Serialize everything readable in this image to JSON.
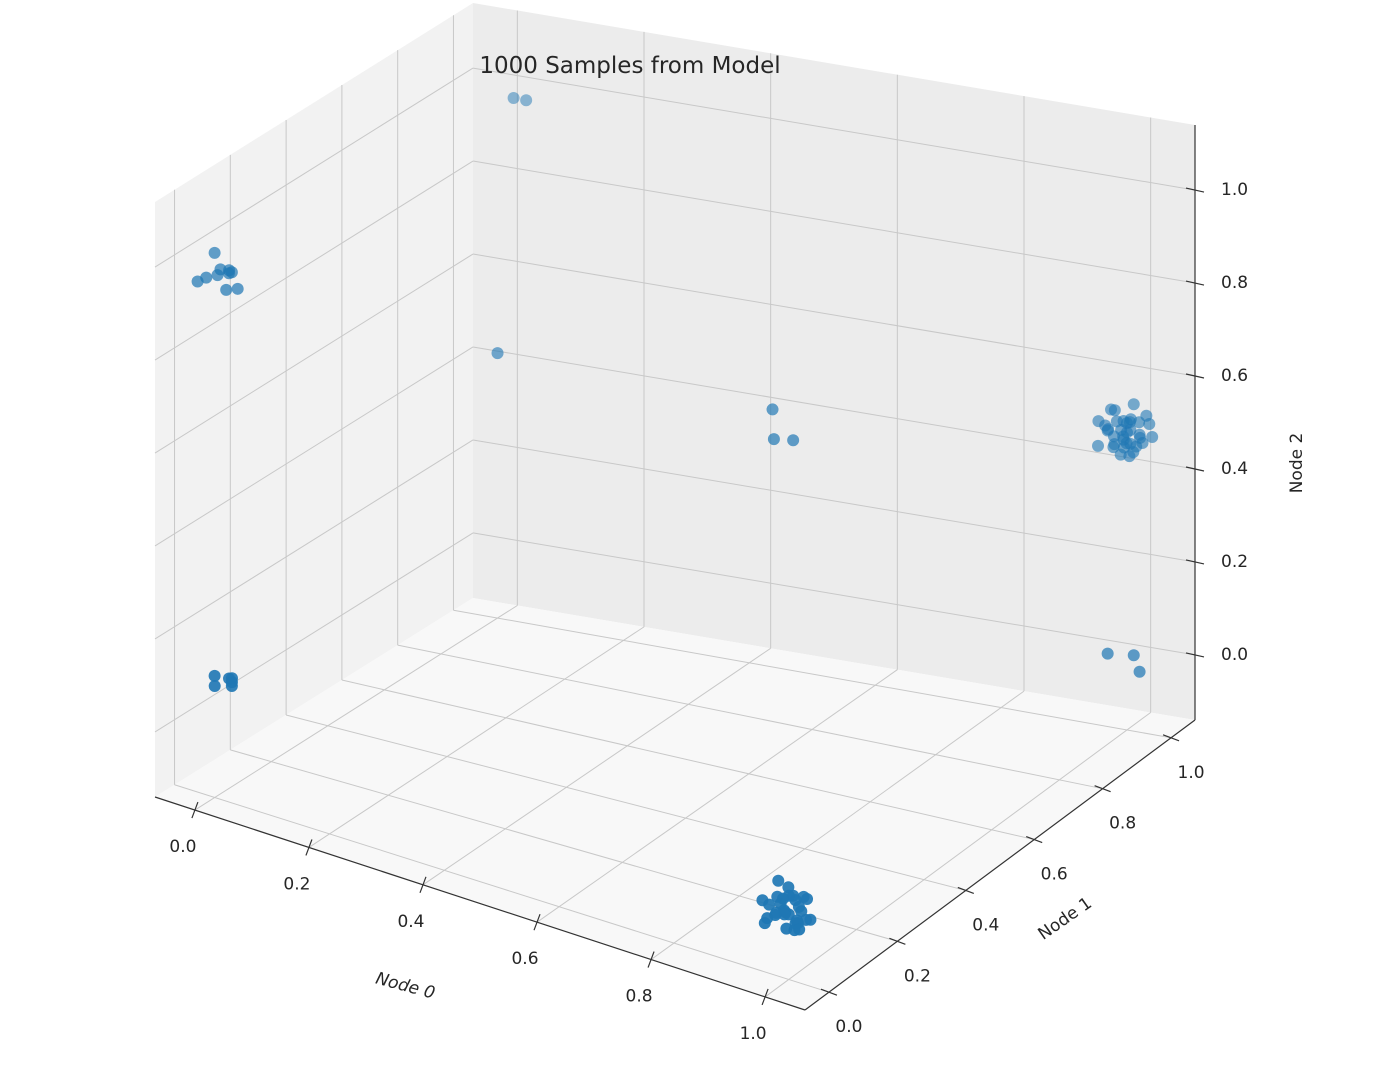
{
  "chart_data": {
    "type": "scatter",
    "title": "1000 Samples from Model",
    "xlabel": "Node 0",
    "ylabel": "Node 1",
    "zlabel": "Node 2",
    "xlim": [
      -0.07,
      1.07
    ],
    "ylim": [
      -0.07,
      1.07
    ],
    "zlim": [
      -0.14,
      1.14
    ],
    "xticks": [
      "0.0",
      "0.2",
      "0.4",
      "0.6",
      "0.8",
      "1.0"
    ],
    "yticks": [
      "0.0",
      "0.2",
      "0.4",
      "0.6",
      "0.8",
      "1.0"
    ],
    "zticks": [
      "0.0",
      "0.2",
      "0.4",
      "0.6",
      "0.8",
      "1.0"
    ],
    "grid": true,
    "color": "#1f77b4",
    "pane_colors": [
      "#f2f2f2",
      "#ececec",
      "#f8f8f8"
    ],
    "grid_color": "#c8c8c8",
    "series": [
      {
        "points": [
          [
            0.02,
            0.0,
            0.96
          ],
          [
            0.0,
            0.01,
            0.98
          ],
          [
            0.01,
            0.03,
            0.98
          ],
          [
            -0.02,
            -0.02,
            0.97
          ],
          [
            0.03,
            -0.01,
            1.01
          ],
          [
            -0.01,
            0.02,
            1.02
          ],
          [
            0.02,
            0.02,
            0.99
          ],
          [
            0.04,
            0.0,
            0.97
          ],
          [
            0.0,
            -0.03,
            0.99
          ],
          [
            0.01,
            0.0,
            1.0
          ],
          [
            0.02,
            0.01,
            0.12
          ],
          [
            0.0,
            0.0,
            0.1
          ],
          [
            0.02,
            0.02,
            0.1
          ],
          [
            0.04,
            -0.02,
            0.14
          ],
          [
            -0.01,
            0.02,
            0.11
          ],
          [
            0.03,
            0.0,
            0.12
          ],
          [
            1.02,
            1.0,
            -0.01
          ],
          [
            1.0,
            1.02,
            0.01
          ],
          [
            0.98,
            0.98,
            0.03
          ],
          [
            0.03,
            0.99,
            0.99
          ],
          [
            0.05,
            0.99,
            0.99
          ],
          [
            0.0,
            1.0,
            0.43
          ],
          [
            0.99,
            0.03,
            1.0
          ],
          [
            0.96,
            0.02,
            1.06
          ],
          [
            0.98,
            -0.01,
            1.02
          ],
          [
            1.0,
            0.97,
            0.54
          ],
          [
            1.02,
            0.99,
            0.48
          ],
          [
            0.98,
            0.98,
            0.51
          ],
          [
            1.03,
            1.01,
            0.52
          ],
          [
            0.99,
            1.01,
            0.46
          ],
          [
            1.0,
            0.99,
            0.53
          ],
          [
            0.97,
            1.0,
            0.5
          ],
          [
            1.01,
            0.98,
            0.49
          ],
          [
            1.0,
            1.02,
            0.55
          ],
          [
            0.98,
            1.0,
            0.47
          ],
          [
            1.02,
            1.0,
            0.5
          ],
          [
            1.0,
            0.99,
            0.49
          ],
          [
            0.96,
            0.99,
            0.52
          ],
          [
            1.03,
            0.98,
            0.54
          ],
          [
            0.99,
            1.03,
            0.51
          ],
          [
            1.01,
            1.0,
            0.46
          ],
          [
            0.97,
            0.97,
            0.48
          ],
          [
            1.0,
            1.01,
            0.5
          ],
          [
            1.02,
            1.02,
            0.53
          ],
          [
            0.99,
            0.98,
            0.5
          ],
          [
            1.01,
            0.97,
            0.51
          ],
          [
            0.98,
            1.02,
            0.49
          ],
          [
            1.0,
            1.0,
            0.52
          ],
          [
            1.04,
            1.0,
            0.5
          ],
          [
            0.96,
            1.01,
            0.5
          ],
          [
            1.0,
            0.96,
            0.49
          ],
          [
            1.02,
            0.97,
            0.47
          ],
          [
            0.98,
            0.99,
            0.55
          ],
          [
            1.01,
            1.02,
            0.48
          ],
          [
            1.0,
            1.0,
            0.5
          ],
          [
            0.97,
            1.02,
            0.53
          ],
          [
            1.03,
            0.99,
            0.49
          ],
          [
            0.99,
            1.0,
            0.45
          ],
          [
            1.01,
            0.99,
            0.53
          ],
          [
            1.0,
            1.01,
            0.47
          ],
          [
            0.97,
            0.05,
            0.02
          ],
          [
            1.0,
            0.02,
            -0.03
          ],
          [
            1.02,
            -0.01,
            0.0
          ],
          [
            0.98,
            0.0,
            0.03
          ],
          [
            1.01,
            0.01,
            -0.02
          ],
          [
            0.99,
            -0.02,
            0.01
          ],
          [
            1.0,
            0.03,
            0.0
          ],
          [
            0.96,
            -0.01,
            0.02
          ],
          [
            1.02,
            0.02,
            0.03
          ],
          [
            0.99,
            0.01,
            -0.04
          ],
          [
            1.01,
            -0.03,
            0.02
          ],
          [
            1.0,
            0.0,
            0.04
          ],
          [
            0.98,
            0.02,
            -0.01
          ],
          [
            1.03,
            0.0,
            0.0
          ],
          [
            0.97,
            -0.02,
            -0.02
          ],
          [
            1.0,
            -0.01,
            0.01
          ],
          [
            1.02,
            0.01,
            0.04
          ],
          [
            0.99,
            0.03,
            0.02
          ],
          [
            1.01,
            0.0,
            -0.03
          ],
          [
            0.98,
            -0.03,
            0.0
          ],
          [
            1.0,
            0.02,
            0.02
          ],
          [
            1.03,
            -0.02,
            -0.01
          ],
          [
            0.96,
            0.01,
            0.0
          ],
          [
            1.0,
            -0.04,
            0.02
          ],
          [
            1.02,
            0.03,
            -0.02
          ],
          [
            0.99,
            0.0,
            0.03
          ],
          [
            1.01,
            0.02,
            0.0
          ],
          [
            0.98,
            0.01,
            0.01
          ],
          [
            1.0,
            0.0,
            0.0
          ],
          [
            0.97,
            0.02,
            0.05
          ]
        ]
      }
    ]
  }
}
